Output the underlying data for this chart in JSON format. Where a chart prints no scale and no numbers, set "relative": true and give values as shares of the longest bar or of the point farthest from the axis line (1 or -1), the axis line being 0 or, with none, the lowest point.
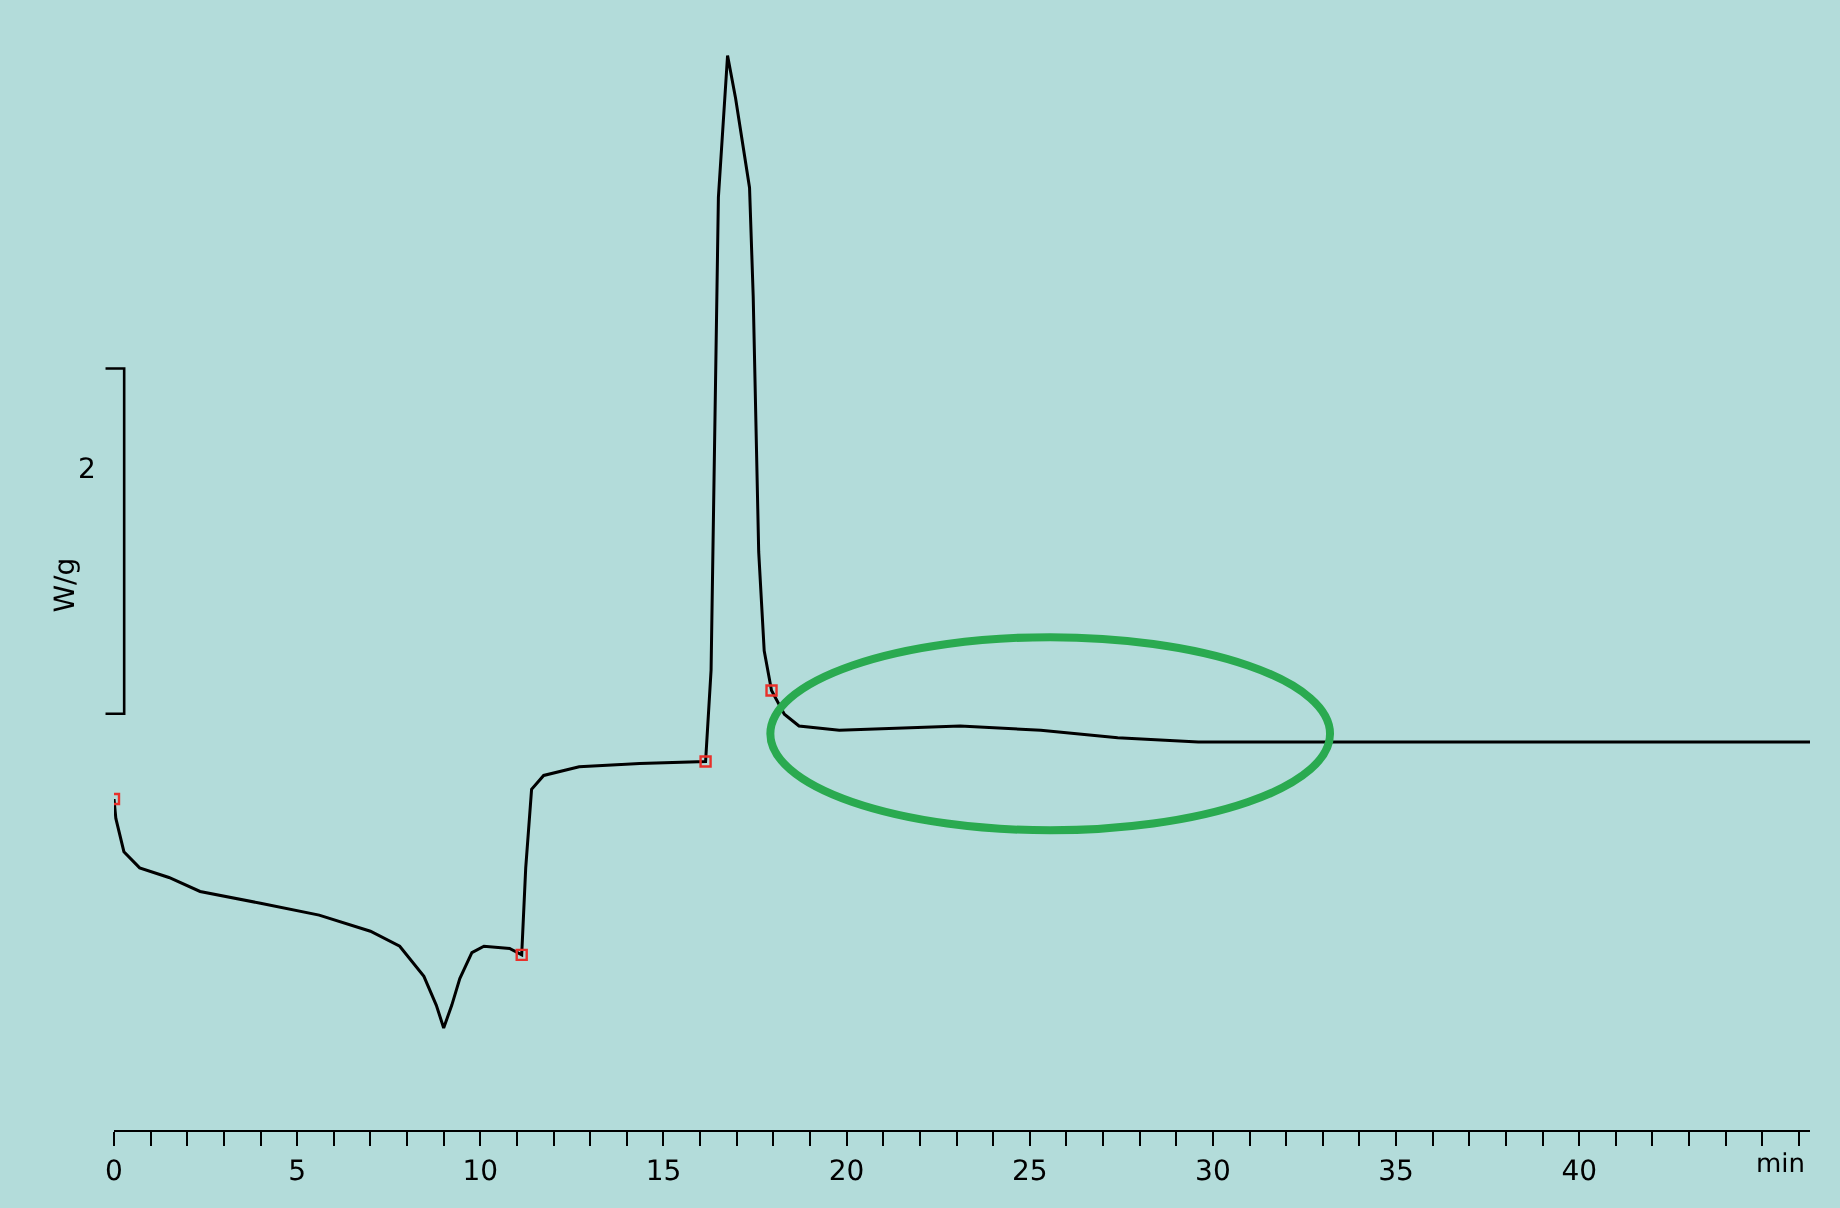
{
  "chart_data": {
    "type": "line",
    "relative": true,
    "xlabel": "min",
    "ylabel": "W/g",
    "annotations": [
      "2"
    ],
    "xlim": [
      0,
      46.3
    ],
    "xticks": [
      0,
      {
        "value": 1,
        "label": null
      },
      {
        "value": 2,
        "label": null
      },
      {
        "value": 3,
        "label": null
      },
      {
        "value": 4,
        "label": null
      },
      5,
      {
        "value": 6,
        "label": null
      },
      {
        "value": 7,
        "label": null
      },
      {
        "value": 8,
        "label": null
      },
      {
        "value": 9,
        "label": null
      },
      10,
      {
        "value": 11,
        "label": null
      },
      {
        "value": 12,
        "label": null
      },
      {
        "value": 13,
        "label": null
      },
      {
        "value": 14,
        "label": null
      },
      15,
      {
        "value": 16,
        "label": null
      },
      {
        "value": 17,
        "label": null
      },
      {
        "value": 18,
        "label": null
      },
      {
        "value": 19,
        "label": null
      },
      20,
      {
        "value": 21,
        "label": null
      },
      {
        "value": 22,
        "label": null
      },
      {
        "value": 23,
        "label": null
      },
      {
        "value": 24,
        "label": null
      },
      25,
      {
        "value": 26,
        "label": null
      },
      {
        "value": 27,
        "label": null
      },
      {
        "value": 28,
        "label": null
      },
      {
        "value": 29,
        "label": null
      },
      30,
      {
        "value": 31,
        "label": null
      },
      {
        "value": 32,
        "label": null
      },
      {
        "value": 33,
        "label": null
      },
      {
        "value": 34,
        "label": null
      },
      35,
      {
        "value": 36,
        "label": null
      },
      {
        "value": 37,
        "label": null
      },
      {
        "value": 38,
        "label": null
      },
      {
        "value": 39,
        "label": null
      },
      40,
      {
        "value": 41,
        "label": null
      },
      {
        "value": 42,
        "label": null
      },
      {
        "value": 43,
        "label": null
      },
      {
        "value": 44,
        "label": null
      },
      {
        "value": 45,
        "label": null
      },
      {
        "value": 46,
        "label": null
      }
    ],
    "grid": false,
    "series": [
      {
        "color": "#000000",
        "marker": "none",
        "x": [
          0,
          0.05,
          0.27,
          0.7,
          1.5,
          2.35,
          4.0,
          5.6,
          7.0,
          7.8,
          8.46,
          8.8,
          9.0,
          9.22,
          9.44,
          9.77,
          10.1,
          10.8,
          11.13,
          11.24,
          11.4,
          11.73,
          12.7,
          14.35,
          16.15,
          16.3,
          16.5,
          16.75,
          16.97,
          17.35,
          17.45,
          17.6,
          17.75,
          17.95,
          18.3,
          18.7,
          19.8,
          23.1,
          25.3,
          27.4,
          29.6,
          32.9,
          46.3
        ],
        "values": [
          0.308,
          0.29,
          0.259,
          0.244,
          0.235,
          0.222,
          0.211,
          0.2,
          0.185,
          0.171,
          0.143,
          0.116,
          0.095,
          0.116,
          0.141,
          0.165,
          0.171,
          0.169,
          0.163,
          0.244,
          0.317,
          0.33,
          0.338,
          0.341,
          0.343,
          0.428,
          0.868,
          1,
          0.96,
          0.877,
          0.776,
          0.538,
          0.446,
          0.409,
          0.387,
          0.376,
          0.372,
          0.376,
          0.372,
          0.365,
          0.361,
          0.361,
          0.361
        ]
      },
      {
        "type": "scatter",
        "color": "#e8302a",
        "marker": "square",
        "x": [
          0,
          11.13,
          16.15,
          17.95
        ],
        "values": [
          0.308,
          0.163,
          0.343,
          0.409
        ]
      }
    ]
  }
}
